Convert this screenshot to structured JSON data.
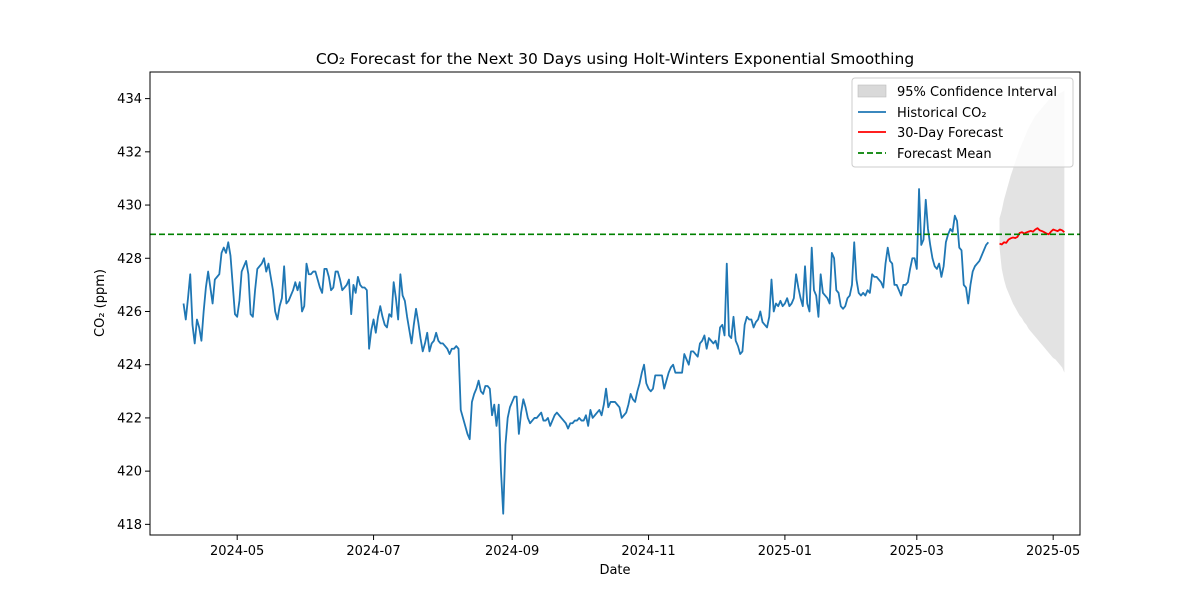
{
  "chart_data": {
    "type": "line",
    "title": "CO₂ Forecast for the Next 30 Days using Holt-Winters Exponential Smoothing",
    "xlabel": "Date",
    "ylabel": "CO₂ (ppm)",
    "xlim": [
      "2024-03-23",
      "2025-05-13"
    ],
    "ylim": [
      417.6,
      435.0
    ],
    "x_ticks": [
      {
        "date": "2024-05-01",
        "label": "2024-05"
      },
      {
        "date": "2024-07-01",
        "label": "2024-07"
      },
      {
        "date": "2024-09-01",
        "label": "2024-09"
      },
      {
        "date": "2024-11-01",
        "label": "2024-11"
      },
      {
        "date": "2025-01-01",
        "label": "2025-01"
      },
      {
        "date": "2025-03-01",
        "label": "2025-03"
      },
      {
        "date": "2025-05-01",
        "label": "2025-05"
      }
    ],
    "y_ticks": [
      418,
      420,
      422,
      424,
      426,
      428,
      430,
      432,
      434
    ],
    "legend_position": "top-right",
    "grid": false,
    "colors": {
      "historical": "#1f77b4",
      "forecast": "#ff0000",
      "mean": "#008000",
      "ci_fill": "#d9d9d9"
    },
    "legend": [
      {
        "key": "ci",
        "label": "95% Confidence Interval"
      },
      {
        "key": "historical",
        "label": "Historical CO₂"
      },
      {
        "key": "forecast",
        "label": "30-Day Forecast"
      },
      {
        "key": "mean",
        "label": "Forecast Mean"
      }
    ],
    "forecast_mean": 428.9,
    "historical": {
      "start": "2024-04-07",
      "values": [
        426.3,
        425.7,
        426.5,
        427.4,
        425.5,
        424.8,
        425.7,
        425.4,
        424.9,
        426.0,
        426.9,
        427.5,
        426.9,
        426.3,
        427.2,
        427.3,
        427.4,
        428.2,
        428.4,
        428.2,
        428.6,
        428.1,
        427.0,
        425.9,
        425.8,
        426.4,
        427.5,
        427.7,
        427.9,
        427.4,
        425.9,
        425.8,
        426.8,
        427.6,
        427.7,
        427.8,
        428.0,
        427.5,
        427.8,
        427.3,
        426.8,
        426.0,
        425.7,
        426.2,
        426.5,
        427.7,
        426.3,
        426.4,
        426.6,
        426.8,
        427.1,
        426.8,
        427.1,
        426.0,
        426.2,
        427.8,
        427.4,
        427.4,
        427.5,
        427.5,
        427.2,
        426.9,
        426.7,
        427.6,
        427.6,
        427.3,
        426.8,
        426.9,
        427.5,
        427.5,
        427.2,
        426.8,
        426.9,
        427.0,
        427.2,
        425.9,
        427.0,
        426.7,
        427.3,
        427.0,
        426.9,
        426.9,
        426.8,
        424.6,
        425.3,
        425.7,
        425.2,
        425.8,
        426.2,
        425.8,
        425.5,
        425.4,
        425.9,
        425.8,
        427.1,
        426.5,
        425.7,
        427.4,
        426.6,
        426.4,
        425.8,
        425.3,
        424.8,
        425.5,
        426.1,
        425.6,
        425.0,
        424.5,
        424.8,
        425.2,
        424.5,
        424.8,
        424.9,
        425.2,
        424.9,
        424.8,
        424.8,
        424.7,
        424.6,
        424.4,
        424.6,
        424.6,
        424.7,
        424.6,
        422.3,
        422.0,
        421.7,
        421.4,
        421.2,
        422.6,
        422.9,
        423.1,
        423.4,
        423.0,
        422.9,
        423.2,
        423.2,
        423.1,
        422.1,
        422.5,
        421.7,
        422.5,
        420.0,
        418.4,
        421.0,
        422.0,
        422.4,
        422.6,
        422.8,
        422.8,
        421.4,
        422.2,
        422.7,
        422.4,
        422.0,
        421.8,
        421.9,
        422.0,
        422.0,
        422.1,
        422.2,
        421.9,
        421.9,
        422.0,
        421.7,
        421.9,
        422.1,
        422.2,
        422.1,
        422.0,
        421.9,
        421.8,
        421.6,
        421.8,
        421.8,
        421.9,
        421.9,
        422.0,
        421.9,
        421.9,
        422.1,
        421.7,
        422.3,
        422.0,
        422.1,
        422.2,
        422.3,
        422.1,
        422.5,
        423.1,
        422.4,
        422.6,
        422.6,
        422.6,
        422.5,
        422.4,
        422.0,
        422.1,
        422.2,
        422.5,
        422.9,
        422.7,
        422.6,
        423.0,
        423.3,
        423.7,
        424.0,
        423.3,
        423.1,
        423.0,
        423.1,
        423.6,
        423.6,
        423.6,
        423.6,
        423.1,
        423.4,
        423.7,
        423.9,
        424.0,
        423.7,
        423.7,
        423.7,
        423.7,
        424.4,
        424.2,
        424.0,
        424.5,
        424.5,
        424.4,
        424.3,
        424.8,
        424.9,
        425.1,
        424.6,
        425.0,
        424.9,
        424.8,
        424.9,
        424.6,
        425.4,
        425.5,
        425.1,
        427.8,
        425.1,
        425.0,
        425.8,
        424.9,
        424.7,
        424.4,
        424.5,
        425.5,
        425.8,
        425.7,
        425.7,
        425.4,
        425.6,
        425.7,
        426.0,
        425.6,
        425.5,
        425.4,
        425.8,
        427.2,
        426.0,
        426.3,
        426.2,
        426.4,
        426.2,
        426.3,
        426.5,
        426.2,
        426.3,
        426.5,
        427.4,
        426.9,
        426.5,
        426.2,
        427.7,
        426.3,
        426.0,
        428.4,
        426.8,
        426.6,
        425.8,
        427.4,
        426.7,
        426.6,
        426.5,
        426.3,
        428.2,
        428.0,
        426.8,
        426.7,
        426.2,
        426.1,
        426.2,
        426.5,
        426.6,
        427.0,
        428.6,
        427.2,
        426.7,
        426.6,
        426.7,
        426.6,
        426.8,
        426.7,
        427.4,
        427.3,
        427.3,
        427.2,
        427.1,
        426.9,
        427.8,
        428.4,
        427.9,
        427.8,
        427.0,
        427.0,
        426.8,
        426.6,
        427.0,
        427.0,
        427.1,
        427.6,
        428.0,
        428.0,
        427.6,
        430.6,
        428.5,
        428.7,
        430.2,
        429.1,
        428.5,
        428.0,
        427.7,
        427.6,
        427.8,
        427.3,
        427.7,
        428.6,
        428.9,
        429.1,
        429.0,
        429.6,
        429.4,
        428.4,
        428.3,
        427.0,
        426.9,
        426.3,
        427.0,
        427.5,
        427.7,
        427.8,
        427.9,
        428.1,
        428.3,
        428.5,
        428.6
      ]
    },
    "forecast": {
      "start": "2025-04-07",
      "values": [
        428.55,
        428.52,
        428.6,
        428.58,
        428.7,
        428.75,
        428.78,
        428.76,
        428.8,
        428.95,
        428.98,
        428.93,
        428.97,
        429.0,
        429.03,
        429.0,
        429.08,
        429.13,
        429.05,
        429.02,
        428.98,
        428.93,
        428.9,
        429.0,
        429.08,
        429.05,
        429.02,
        429.08,
        429.05,
        428.98
      ]
    },
    "confidence_interval": {
      "lower": [
        428.4,
        427.6,
        427.2,
        426.9,
        426.7,
        426.5,
        426.3,
        426.15,
        426.0,
        425.85,
        425.75,
        425.6,
        425.5,
        425.35,
        425.25,
        425.15,
        425.05,
        424.95,
        424.85,
        424.75,
        424.65,
        424.55,
        424.45,
        424.35,
        424.25,
        424.2,
        424.1,
        424.0,
        423.9,
        423.7
      ],
      "upper": [
        429.5,
        429.8,
        430.2,
        430.5,
        430.8,
        431.1,
        431.35,
        431.6,
        431.85,
        432.1,
        432.3,
        432.5,
        432.7,
        432.9,
        433.05,
        433.2,
        433.35,
        433.45,
        433.55,
        433.65,
        433.75,
        433.85,
        433.95,
        434.0,
        434.05,
        434.1,
        434.15,
        434.2,
        434.25,
        434.3
      ]
    }
  }
}
